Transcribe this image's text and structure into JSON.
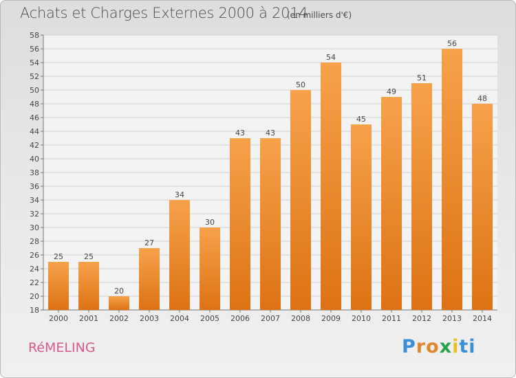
{
  "header": {
    "title": "Achats et Charges Externes 2000 à 2014",
    "subtitle": "(en milliers d'€)"
  },
  "footer": {
    "commune": "RéMELING",
    "logo_letters": [
      "P",
      "r",
      "o",
      "x",
      "i",
      "t",
      "i"
    ],
    "logo_colors": [
      "#3a8fd6",
      "#e0872d",
      "#e0872d",
      "#2aa24a",
      "#e8c020",
      "#3a8fd6",
      "#3a8fd6"
    ]
  },
  "chart_data": {
    "type": "bar",
    "categories": [
      "2000",
      "2001",
      "2002",
      "2003",
      "2004",
      "2005",
      "2006",
      "2007",
      "2008",
      "2009",
      "2010",
      "2011",
      "2012",
      "2013",
      "2014"
    ],
    "values": [
      25,
      25,
      20,
      27,
      34,
      30,
      43,
      43,
      50,
      54,
      45,
      49,
      51,
      56,
      48
    ],
    "title": "Achats et Charges Externes 2000 à 2014",
    "xlabel": "",
    "ylabel": "",
    "ylim": [
      18,
      58
    ],
    "yticks": [
      18,
      20,
      22,
      24,
      26,
      28,
      30,
      32,
      34,
      36,
      38,
      40,
      42,
      44,
      46,
      48,
      50,
      52,
      54,
      56,
      58
    ],
    "grid": true,
    "bar_color": "#f28c28",
    "data_labels": true
  }
}
